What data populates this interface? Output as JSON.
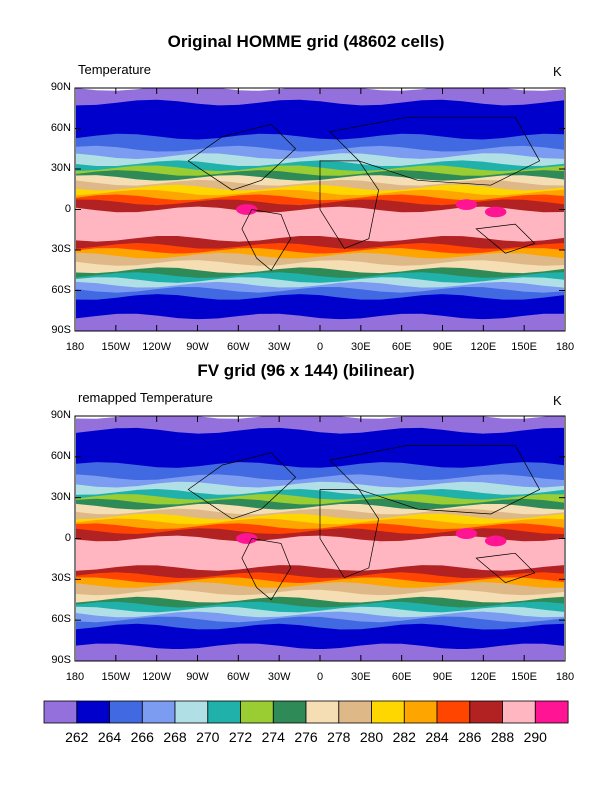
{
  "panels": [
    {
      "title": "Original HOMME grid (48602 cells)",
      "left_label": "Temperature",
      "right_label": "K"
    },
    {
      "title": "FV grid (96 x 144) (bilinear)",
      "left_label": "remapped Temperature",
      "right_label": "K"
    }
  ],
  "lat_ticks": [
    "90N",
    "60N",
    "30N",
    "0",
    "30S",
    "60S",
    "90S"
  ],
  "lon_ticks": [
    "180",
    "150W",
    "120W",
    "90W",
    "60W",
    "30W",
    "0",
    "30E",
    "60E",
    "90E",
    "120E",
    "150E",
    "180"
  ],
  "colorbar": {
    "labels": [
      "262",
      "264",
      "266",
      "268",
      "270",
      "272",
      "274",
      "276",
      "278",
      "280",
      "282",
      "284",
      "286",
      "288",
      "290"
    ],
    "colors": [
      "#9370db",
      "#0000cd",
      "#4169e1",
      "#7b9cf0",
      "#b0e0e6",
      "#20b2aa",
      "#9acd32",
      "#2e8b57",
      "#f5deb3",
      "#deb887",
      "#ffd700",
      "#ffa500",
      "#ff4500",
      "#b22222",
      "#ffb6c1",
      "#ff1493"
    ]
  }
}
